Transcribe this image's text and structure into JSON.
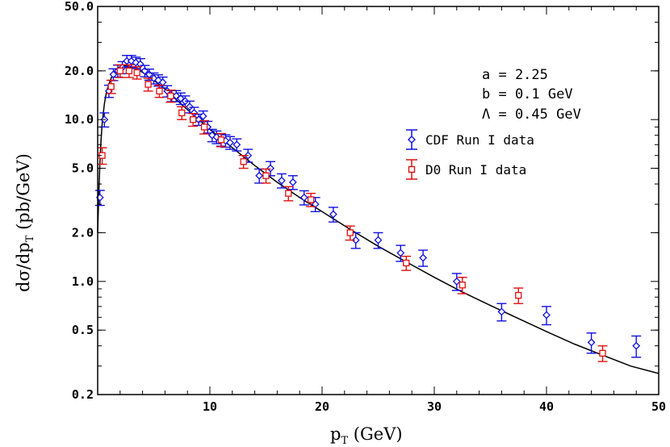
{
  "chart_data": {
    "type": "scatter",
    "xlabel_main": "p",
    "xlabel_sub": "T",
    "xlabel_unit": " (GeV)",
    "ylabel_pre": "dσ/dp",
    "ylabel_sub": "T",
    "ylabel_unit": " (pb/GeV)",
    "xlim": [
      0,
      50
    ],
    "ylim": [
      0.2,
      50
    ],
    "yscale": "log",
    "xticks": [
      10,
      20,
      30,
      40,
      50
    ],
    "xtick_labels": [
      "10",
      "20",
      "30",
      "40",
      "50"
    ],
    "yticks": [
      0.2,
      0.5,
      1,
      2,
      5,
      10,
      20,
      50
    ],
    "ytick_labels": [
      "0.2",
      "0.5",
      "1.0",
      "2.0",
      "5.0",
      "10.0",
      "20.0",
      "50.0"
    ],
    "parameters": [
      "a = 2.25",
      "b = 0.1 GeV",
      "Λ = 0.45 GeV"
    ],
    "legend_position": "top-right",
    "series": [
      {
        "name": "CDF Run I data",
        "color": "#1010e0",
        "marker": "diamond",
        "x": [
          0.2,
          0.6,
          1.0,
          1.4,
          1.8,
          2.2,
          2.6,
          3.0,
          3.4,
          3.8,
          4.2,
          4.6,
          5.0,
          5.4,
          5.8,
          6.2,
          6.6,
          7.0,
          7.4,
          7.8,
          8.2,
          8.6,
          9.0,
          9.4,
          9.8,
          10.2,
          10.6,
          11.0,
          11.4,
          11.8,
          12.4,
          13.4,
          14.4,
          15.4,
          16.4,
          17.4,
          18.4,
          19.4,
          21.0,
          23.0,
          25.0,
          27.0,
          29.0,
          32.0,
          36.0,
          40.0,
          44.0,
          48.0
        ],
        "y": [
          3.3,
          10.0,
          15.0,
          19.0,
          20.0,
          21.0,
          23.0,
          23.0,
          22.5,
          22.0,
          20.0,
          19.0,
          18.0,
          17.5,
          17.0,
          15.0,
          14.0,
          14.0,
          13.5,
          13.0,
          12.0,
          11.0,
          10.0,
          10.5,
          9.0,
          8.0,
          7.8,
          7.5,
          7.4,
          7.2,
          7.0,
          6.0,
          4.5,
          5.0,
          4.2,
          4.1,
          3.3,
          3.0,
          2.6,
          1.8,
          1.8,
          1.5,
          1.4,
          1.0,
          0.65,
          0.62,
          0.42,
          0.4
        ],
        "err": [
          0.35,
          1.0,
          1.3,
          1.6,
          1.7,
          1.8,
          1.9,
          1.9,
          1.8,
          1.8,
          1.6,
          1.5,
          1.4,
          1.4,
          1.3,
          1.2,
          1.1,
          1.1,
          1.1,
          1.0,
          1.0,
          0.9,
          0.8,
          0.8,
          0.75,
          0.7,
          0.7,
          0.65,
          0.65,
          0.65,
          0.6,
          0.55,
          0.45,
          0.5,
          0.42,
          0.4,
          0.33,
          0.3,
          0.27,
          0.2,
          0.2,
          0.17,
          0.16,
          0.12,
          0.08,
          0.08,
          0.06,
          0.06
        ]
      },
      {
        "name": "D0 Run I data",
        "color": "#e01010",
        "marker": "square",
        "x": [
          0.4,
          1.2,
          2.0,
          2.8,
          3.5,
          4.5,
          5.5,
          6.5,
          7.5,
          8.5,
          9.5,
          11.0,
          13.0,
          15.0,
          17.0,
          19.0,
          22.5,
          27.5,
          32.5,
          37.5,
          45.0
        ],
        "y": [
          6.0,
          16.0,
          20.0,
          20.0,
          19.5,
          16.5,
          15.0,
          14.0,
          11.0,
          10.0,
          9.0,
          7.5,
          5.5,
          4.5,
          3.5,
          3.2,
          2.0,
          1.3,
          0.95,
          0.82,
          0.36
        ],
        "err": [
          0.7,
          1.5,
          1.8,
          1.8,
          1.7,
          1.5,
          1.3,
          1.2,
          1.0,
          0.9,
          0.85,
          0.7,
          0.5,
          0.45,
          0.35,
          0.3,
          0.2,
          0.13,
          0.11,
          0.09,
          0.04
        ]
      }
    ],
    "curve": {
      "color": "#000000",
      "x": [
        0.0,
        0.1,
        0.2,
        0.3,
        0.4,
        0.6,
        0.8,
        1.0,
        1.3,
        1.6,
        2.0,
        2.5,
        3.0,
        3.5,
        4.0,
        4.5,
        5.0,
        5.5,
        6.0,
        7.0,
        8.0,
        9.0,
        10.0,
        12.0,
        14.0,
        16.0,
        18.0,
        20.0,
        22.5,
        25.0,
        27.5,
        30.0,
        32.5,
        35.0,
        37.5,
        40.0,
        42.5,
        45.0,
        47.5,
        50.0
      ],
      "y": [
        2.0,
        3.5,
        5.5,
        7.5,
        9.5,
        12.5,
        15.0,
        16.5,
        18.8,
        20.3,
        21.2,
        21.5,
        21.2,
        20.5,
        19.6,
        18.6,
        17.5,
        16.5,
        15.4,
        13.3,
        11.5,
        10.0,
        8.7,
        6.7,
        5.2,
        4.1,
        3.3,
        2.7,
        2.1,
        1.65,
        1.32,
        1.06,
        0.86,
        0.71,
        0.59,
        0.49,
        0.41,
        0.35,
        0.3,
        0.27
      ]
    }
  }
}
